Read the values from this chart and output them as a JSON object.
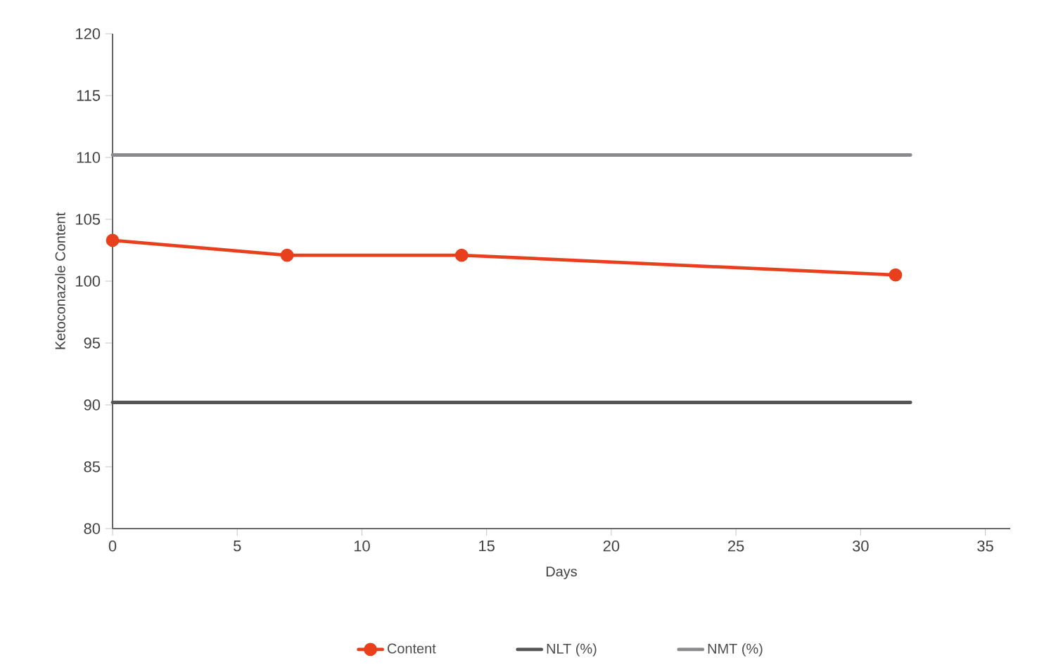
{
  "chart_data": {
    "type": "line",
    "xlabel": "Days",
    "ylabel": "Ketoconazole Content",
    "xlim": [
      0,
      36
    ],
    "xticks": [
      0,
      5,
      10,
      15,
      20,
      25,
      30,
      35
    ],
    "ylim": [
      80,
      120
    ],
    "yticks": [
      80,
      85,
      90,
      95,
      100,
      105,
      110,
      115,
      120
    ],
    "grid": false,
    "legend": "bottom",
    "series": [
      {
        "name": "Content",
        "color": "#e8401c",
        "x": [
          0,
          7,
          14,
          31.4
        ],
        "values": [
          103.3,
          102.1,
          102.1,
          100.5
        ],
        "marker": "circle"
      },
      {
        "name": "NLT (%)",
        "color": "#555555",
        "x": [
          0,
          32
        ],
        "values": [
          90.2,
          90.2
        ],
        "marker": "none"
      },
      {
        "name": "NMT (%)",
        "color": "#8a8a8c",
        "x": [
          0,
          32
        ],
        "values": [
          110.2,
          110.2
        ],
        "marker": "none"
      }
    ]
  }
}
